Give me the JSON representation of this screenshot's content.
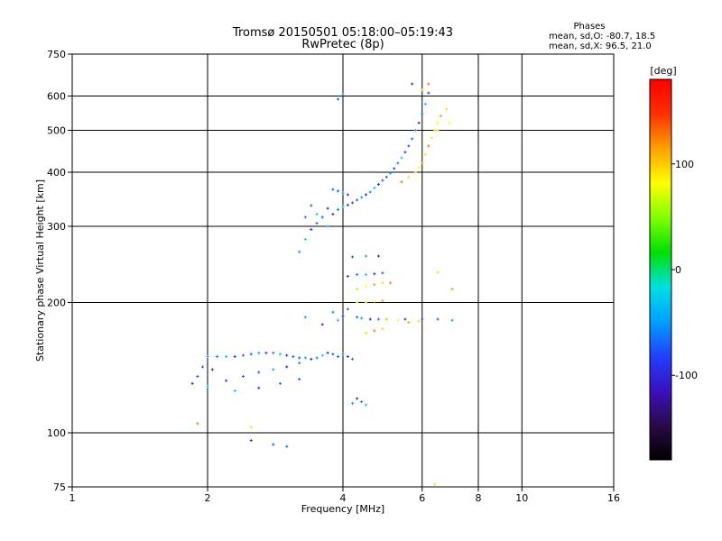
{
  "chart_data": {
    "type": "scatter",
    "title": "Tromsø 20150501 05:18:00–05:19:43",
    "subtitle": "RwPretec (8p)",
    "xlabel": "Frequency [MHz]",
    "ylabel": "Stationary phase Virtual Height [km]",
    "x_scale": "log",
    "y_scale": "log",
    "xlim": [
      1,
      16
    ],
    "ylim": [
      75,
      750
    ],
    "x_ticks": [
      1,
      2,
      4,
      6,
      8,
      10,
      16
    ],
    "y_ticks": [
      75,
      100,
      200,
      300,
      400,
      500,
      600,
      750
    ],
    "grid": true,
    "info": {
      "heading": "Phases",
      "line1": "mean, sd,O: -80.7, 18.5",
      "line2": "mean, sd,X:  96.5, 21.0"
    },
    "colorbar": {
      "label": "[deg]",
      "range": [
        -180,
        180
      ],
      "ticks": [
        100,
        0,
        -100
      ],
      "colors": [
        "#000000",
        "#2a0a4a",
        "#3a10c0",
        "#2040ff",
        "#00a0ff",
        "#00e0e0",
        "#00e000",
        "#80ff00",
        "#ffff00",
        "#ffa000",
        "#ff3000",
        "#ff0000"
      ]
    },
    "series": [
      {
        "mode": "O",
        "points": [
          [
            1.85,
            130
          ],
          [
            1.9,
            135
          ],
          [
            1.95,
            142
          ],
          [
            2.0,
            150
          ],
          [
            2.05,
            140
          ],
          [
            2.1,
            150
          ],
          [
            2.2,
            150
          ],
          [
            2.3,
            150
          ],
          [
            2.4,
            151
          ],
          [
            2.5,
            152
          ],
          [
            2.6,
            153
          ],
          [
            2.7,
            153
          ],
          [
            2.8,
            153
          ],
          [
            2.9,
            152
          ],
          [
            3.0,
            151
          ],
          [
            3.1,
            150
          ],
          [
            3.2,
            149
          ],
          [
            3.3,
            149
          ],
          [
            3.4,
            148
          ],
          [
            3.5,
            149
          ],
          [
            3.6,
            151
          ],
          [
            3.7,
            153
          ],
          [
            3.8,
            152
          ],
          [
            3.9,
            150
          ],
          [
            4.0,
            152
          ],
          [
            4.1,
            150
          ],
          [
            4.2,
            148
          ],
          [
            2.0,
            128
          ],
          [
            2.2,
            132
          ],
          [
            2.4,
            135
          ],
          [
            2.6,
            138
          ],
          [
            2.8,
            140
          ],
          [
            3.0,
            142
          ],
          [
            3.2,
            145
          ],
          [
            2.3,
            125
          ],
          [
            2.6,
            127
          ],
          [
            2.9,
            130
          ],
          [
            3.2,
            133
          ],
          [
            4.2,
            117
          ],
          [
            4.3,
            120
          ],
          [
            4.4,
            118
          ],
          [
            4.5,
            116
          ],
          [
            2.5,
            96
          ],
          [
            2.8,
            94
          ],
          [
            3.0,
            93
          ],
          [
            3.3,
            185
          ],
          [
            3.6,
            178
          ],
          [
            3.8,
            190
          ],
          [
            3.9,
            182
          ],
          [
            4.0,
            186
          ],
          [
            4.1,
            193
          ],
          [
            4.3,
            185
          ],
          [
            4.4,
            184
          ],
          [
            4.6,
            183
          ],
          [
            4.8,
            183
          ],
          [
            5.0,
            183
          ],
          [
            5.5,
            183
          ],
          [
            6.0,
            183
          ],
          [
            6.5,
            183
          ],
          [
            7.0,
            182
          ],
          [
            4.1,
            230
          ],
          [
            4.3,
            232
          ],
          [
            4.5,
            232
          ],
          [
            4.7,
            233
          ],
          [
            4.9,
            234
          ],
          [
            4.2,
            255
          ],
          [
            4.5,
            256
          ],
          [
            4.8,
            256
          ],
          [
            3.2,
            262
          ],
          [
            3.3,
            280
          ],
          [
            3.4,
            295
          ],
          [
            3.5,
            305
          ],
          [
            3.6,
            315
          ],
          [
            3.7,
            300
          ],
          [
            3.8,
            320
          ],
          [
            3.9,
            328
          ],
          [
            4.0,
            333
          ],
          [
            4.1,
            336
          ],
          [
            4.2,
            340
          ],
          [
            4.3,
            345
          ],
          [
            4.4,
            350
          ],
          [
            4.5,
            355
          ],
          [
            4.6,
            360
          ],
          [
            4.7,
            368
          ],
          [
            4.8,
            375
          ],
          [
            4.9,
            383
          ],
          [
            5.0,
            390
          ],
          [
            5.1,
            398
          ],
          [
            5.2,
            408
          ],
          [
            5.3,
            420
          ],
          [
            5.4,
            432
          ],
          [
            5.5,
            445
          ],
          [
            5.6,
            460
          ],
          [
            5.7,
            478
          ],
          [
            5.8,
            500
          ],
          [
            5.9,
            520
          ],
          [
            6.0,
            545
          ],
          [
            6.1,
            575
          ],
          [
            6.2,
            610
          ],
          [
            3.8,
            365
          ],
          [
            3.9,
            362
          ],
          [
            4.0,
            358
          ],
          [
            4.1,
            355
          ],
          [
            3.3,
            315
          ],
          [
            3.5,
            320
          ],
          [
            3.7,
            330
          ],
          [
            3.4,
            335
          ],
          [
            3.9,
            590
          ],
          [
            4.0,
            605
          ],
          [
            5.7,
            640
          ]
        ]
      },
      {
        "mode": "X",
        "points": [
          [
            4.3,
            215
          ],
          [
            4.5,
            218
          ],
          [
            4.7,
            220
          ],
          [
            4.9,
            222
          ],
          [
            5.1,
            222
          ],
          [
            4.3,
            200
          ],
          [
            4.5,
            200
          ],
          [
            4.7,
            201
          ],
          [
            4.9,
            202
          ],
          [
            4.5,
            170
          ],
          [
            4.7,
            172
          ],
          [
            4.9,
            174
          ],
          [
            5.0,
            183
          ],
          [
            5.3,
            182
          ],
          [
            5.6,
            180
          ],
          [
            5.9,
            181
          ],
          [
            5.4,
            380
          ],
          [
            5.6,
            390
          ],
          [
            5.8,
            400
          ],
          [
            5.9,
            410
          ],
          [
            6.0,
            420
          ],
          [
            6.1,
            440
          ],
          [
            6.2,
            460
          ],
          [
            6.3,
            480
          ],
          [
            6.4,
            500
          ],
          [
            6.5,
            520
          ],
          [
            6.6,
            540
          ],
          [
            6.0,
            620
          ],
          [
            6.2,
            640
          ],
          [
            6.5,
            500
          ],
          [
            6.8,
            560
          ],
          [
            6.9,
            520
          ],
          [
            7.0,
            215
          ],
          [
            6.5,
            235
          ],
          [
            1.9,
            105
          ],
          [
            2.5,
            103
          ],
          [
            6.4,
            76
          ]
        ]
      }
    ]
  }
}
